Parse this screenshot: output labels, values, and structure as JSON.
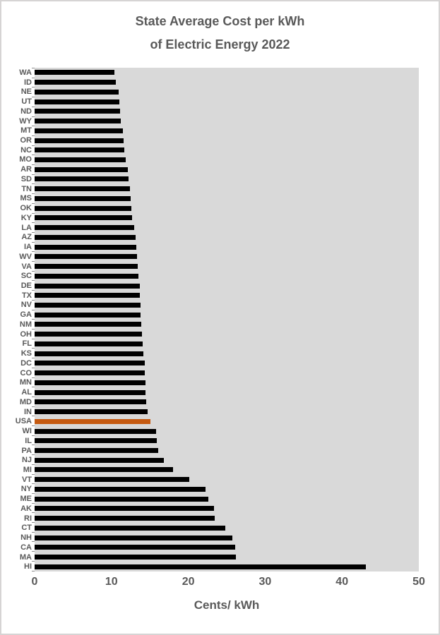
{
  "title": {
    "line1": "State Average Cost per kWh",
    "line2": "of Electric Energy 2022"
  },
  "chart_data": {
    "type": "bar",
    "orientation": "horizontal",
    "title": "State Average Cost per kWh of Electric Energy 2022",
    "xlabel": "Cents/ kWh",
    "ylabel": "",
    "xlim": [
      0,
      50
    ],
    "xticks": [
      "0",
      "10",
      "20",
      "30",
      "40",
      "50"
    ],
    "grid": false,
    "plot_background": "#d9d9d9",
    "bar_color": "#000000",
    "text_color": "#595959",
    "highlight": {
      "category": "USA",
      "color": "#c55a11"
    },
    "categories": [
      "WA",
      "ID",
      "NE",
      "UT",
      "ND",
      "WY",
      "MT",
      "OR",
      "NC",
      "MO",
      "AR",
      "SD",
      "TN",
      "MS",
      "OK",
      "KY",
      "LA",
      "AZ",
      "IA",
      "WV",
      "VA",
      "SC",
      "DE",
      "TX",
      "NV",
      "GA",
      "NM",
      "OH",
      "FL",
      "KS",
      "DC",
      "CO",
      "MN",
      "AL",
      "MD",
      "IN",
      "USA",
      "WI",
      "IL",
      "PA",
      "NJ",
      "MI",
      "VT",
      "NY",
      "ME",
      "AK",
      "RI",
      "CT",
      "NH",
      "CA",
      "MA",
      "HI"
    ],
    "values": [
      10.4,
      10.6,
      10.9,
      11.0,
      11.1,
      11.2,
      11.5,
      11.6,
      11.7,
      11.9,
      12.1,
      12.2,
      12.4,
      12.5,
      12.6,
      12.7,
      13.0,
      13.1,
      13.2,
      13.3,
      13.4,
      13.5,
      13.7,
      13.7,
      13.8,
      13.8,
      13.9,
      14.0,
      14.1,
      14.2,
      14.3,
      14.3,
      14.4,
      14.4,
      14.5,
      14.7,
      15.1,
      15.8,
      15.9,
      16.1,
      16.8,
      18.0,
      20.1,
      22.2,
      22.6,
      23.3,
      23.4,
      24.8,
      25.7,
      26.1,
      26.2,
      43.1
    ]
  }
}
